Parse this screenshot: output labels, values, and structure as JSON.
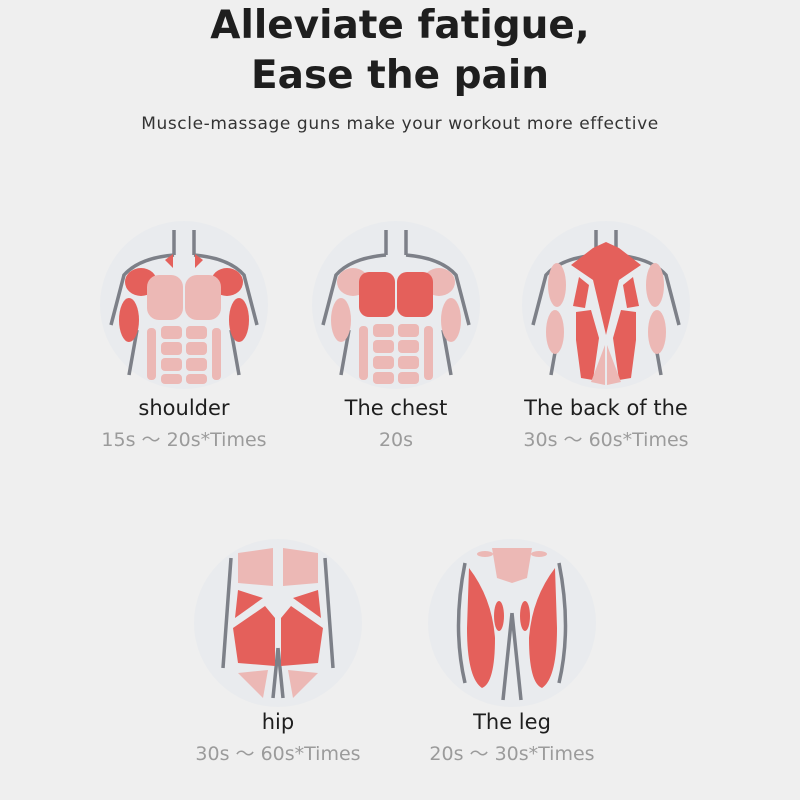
{
  "header": {
    "title_line1": "Alleviate fatigue,",
    "title_line2": "Ease the pain",
    "subtitle": "Muscle-massage guns make your workout more effective"
  },
  "colors": {
    "background": "#efefef",
    "target_muscle": "#e4605b",
    "other_muscle": "#ecb8b5",
    "outline": "#7d8088"
  },
  "areas": [
    {
      "name": "shoulder",
      "time": "15s ～ 20s*Times",
      "icon": "shoulder-muscles-icon"
    },
    {
      "name": "The chest",
      "time": "20s",
      "icon": "chest-muscles-icon"
    },
    {
      "name": "The back of the",
      "time": "30s ～ 60s*Times",
      "icon": "back-muscles-icon"
    },
    {
      "name": "hip",
      "time": "30s ～ 60s*Times",
      "icon": "hip-muscles-icon"
    },
    {
      "name": "The leg",
      "time": "20s ～ 30s*Times",
      "icon": "leg-muscles-icon"
    }
  ]
}
